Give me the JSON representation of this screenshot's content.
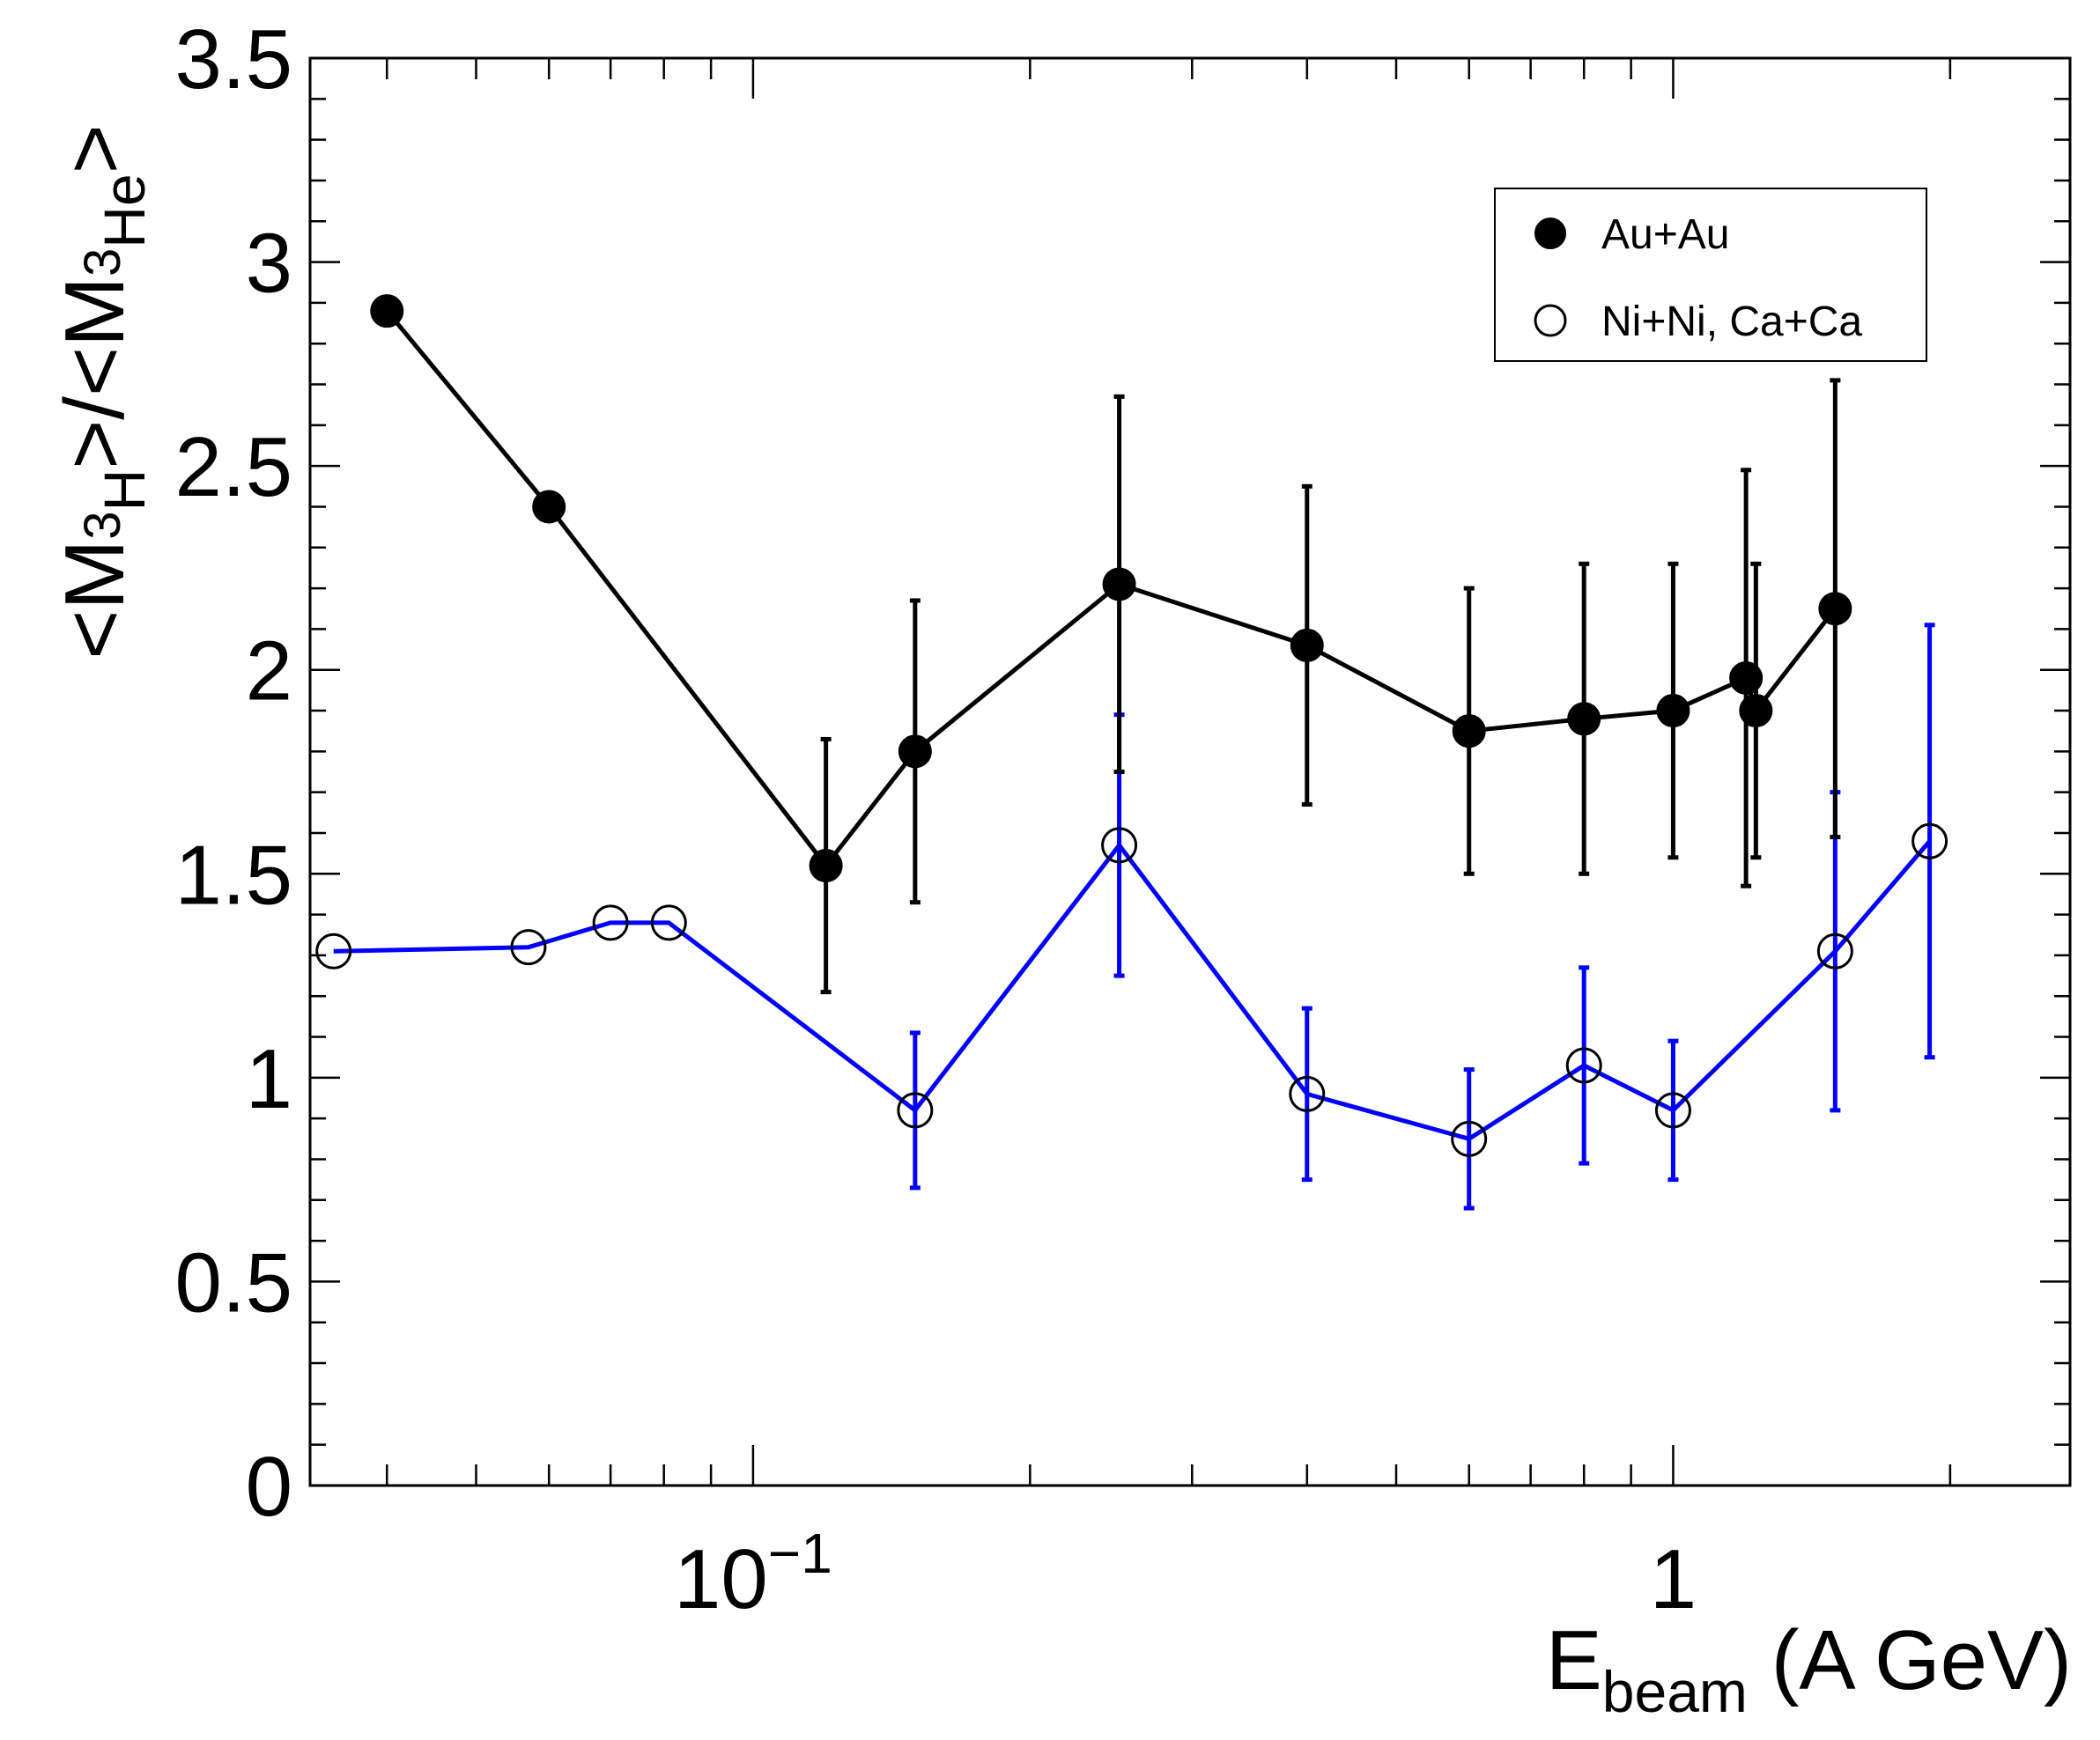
{
  "chart_data": {
    "type": "scatter",
    "x_scale": "log",
    "xlim": [
      0.033,
      2.7
    ],
    "ylim": [
      0,
      3.5
    ],
    "xlabel": {
      "main": "E",
      "sub": "beam",
      "rest": " (A GeV)"
    },
    "ylabel": {
      "open": "<M",
      "sup1": "3",
      "sub1": "H",
      "mid": ">/<M",
      "sup2": "3",
      "sub2": "He",
      "close": ">"
    },
    "x_tick_labels": [
      {
        "value": 0.1,
        "base": "10",
        "exp": "−1"
      },
      {
        "value": 1,
        "base": "1",
        "exp": ""
      }
    ],
    "y_tick_labels": [
      "0",
      "0.5",
      "1",
      "1.5",
      "2",
      "2.5",
      "3",
      "3.5"
    ],
    "y_ticks": [
      0,
      0.5,
      1,
      1.5,
      2,
      2.5,
      3,
      3.5
    ],
    "legend": {
      "position": "top-right",
      "entries": [
        "Au+Au",
        "Ni+Ni, Ca+Ca"
      ]
    },
    "series": [
      {
        "name": "Au+Au",
        "marker": "filled-circle",
        "line_color": "#000000",
        "error_color": "#000000",
        "points": [
          {
            "x": 0.04,
            "y": 2.88,
            "err": null
          },
          {
            "x": 0.06,
            "y": 2.4,
            "err": null
          },
          {
            "x": 0.12,
            "y": 1.52,
            "err": 0.31
          },
          {
            "x": 0.15,
            "y": 1.8,
            "err": 0.37
          },
          {
            "x": 0.25,
            "y": 2.21,
            "err": 0.46
          },
          {
            "x": 0.4,
            "y": 2.06,
            "err": 0.39
          },
          {
            "x": 0.6,
            "y": 1.85,
            "err": 0.35
          },
          {
            "x": 0.8,
            "y": 1.88,
            "err": 0.38
          },
          {
            "x": 1.0,
            "y": 1.9,
            "err": 0.36
          },
          {
            "x": 1.2,
            "y": 1.98,
            "err": 0.51
          },
          {
            "x": 1.23,
            "y": 1.9,
            "err": 0.36
          },
          {
            "x": 1.5,
            "y": 2.15,
            "err": 0.56
          }
        ]
      },
      {
        "name": "Ni+Ni, Ca+Ca",
        "marker": "open-circle",
        "line_color": "#0000ff",
        "error_color": "#0000ff",
        "points": [
          {
            "x": 0.035,
            "y": 1.31,
            "err": null
          },
          {
            "x": 0.057,
            "y": 1.32,
            "err": null
          },
          {
            "x": 0.07,
            "y": 1.38,
            "err": null
          },
          {
            "x": 0.081,
            "y": 1.38,
            "err": null
          },
          {
            "x": 0.15,
            "y": 0.92,
            "err": 0.19
          },
          {
            "x": 0.25,
            "y": 1.57,
            "err": 0.32
          },
          {
            "x": 0.4,
            "y": 0.96,
            "err": 0.21
          },
          {
            "x": 0.6,
            "y": 0.85,
            "err": 0.17
          },
          {
            "x": 0.8,
            "y": 1.03,
            "err": 0.24
          },
          {
            "x": 1.0,
            "y": 0.92,
            "err": 0.17
          },
          {
            "x": 1.5,
            "y": 1.31,
            "err": 0.39
          },
          {
            "x": 1.9,
            "y": 1.58,
            "err": 0.53
          }
        ]
      }
    ]
  }
}
